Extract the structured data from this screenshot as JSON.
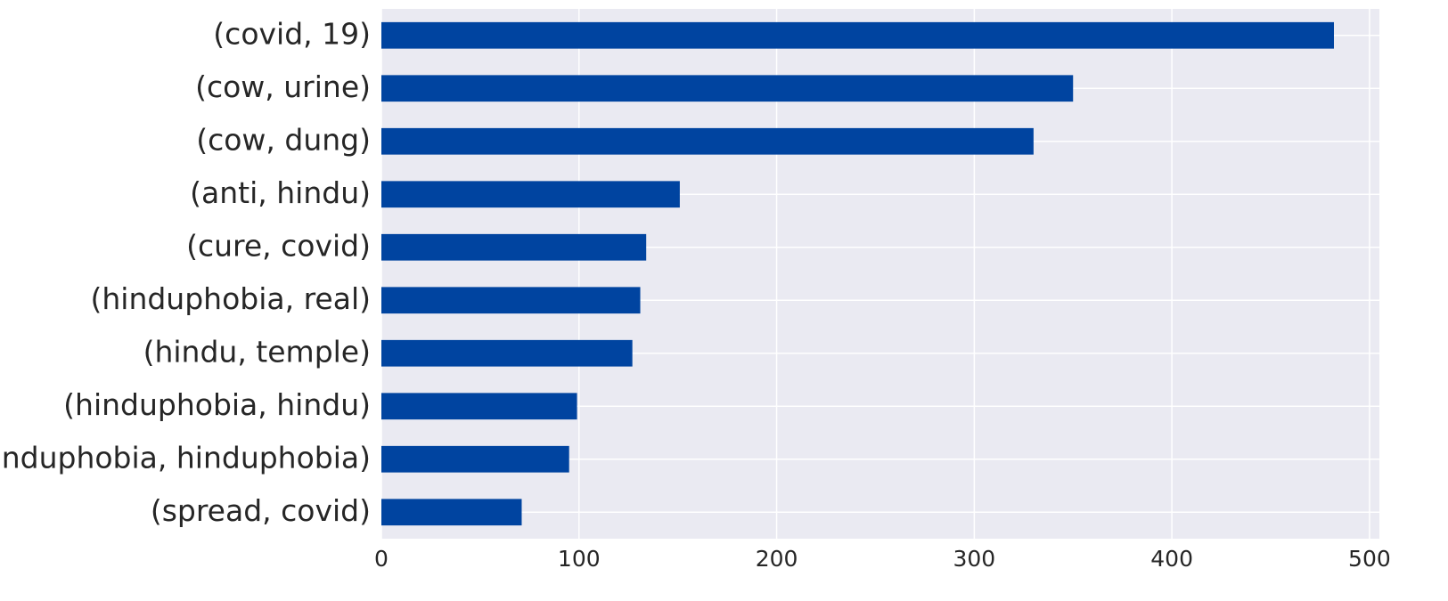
{
  "chart_data": {
    "type": "barh",
    "categories": [
      "(covid, 19)",
      "(cow, urine)",
      "(cow, dung)",
      "(anti, hindu)",
      "(cure, covid)",
      "(hinduphobia, real)",
      "(hindu, temple)",
      "(hinduphobia, hindu)",
      "(hinduphobia, hinduphobia)",
      "(spread, covid)"
    ],
    "values": [
      482,
      350,
      330,
      151,
      134,
      131,
      127,
      99,
      95,
      71
    ],
    "color": "#0044a0",
    "xlim": [
      0,
      505
    ],
    "xticks": [
      0,
      100,
      200,
      300,
      400,
      500
    ],
    "grid": true
  }
}
